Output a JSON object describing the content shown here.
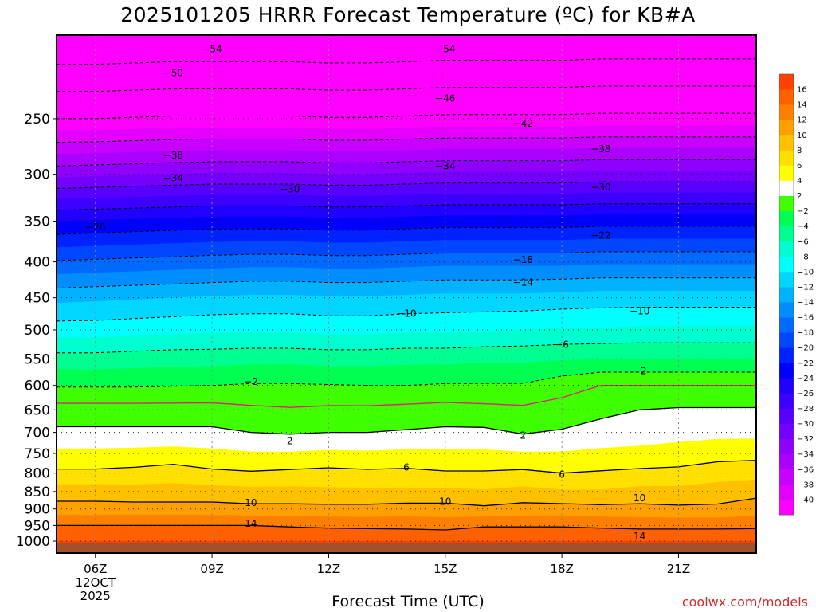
{
  "title": "2025101205 HRRR Forecast Temperature (ºC) for KB#A",
  "credit": "coolwx.com/models",
  "chart_data": {
    "type": "heatmap",
    "title": "2025101205 HRRR Forecast Temperature (ºC) for KB#A",
    "xlabel": "Forecast Time (UTC)",
    "ylabel": "",
    "x_ticks": [
      {
        "hour": 6,
        "label": "06Z",
        "sub1": "12OCT",
        "sub2": "2025"
      },
      {
        "hour": 9,
        "label": "09Z"
      },
      {
        "hour": 12,
        "label": "12Z"
      },
      {
        "hour": 15,
        "label": "15Z"
      },
      {
        "hour": 18,
        "label": "18Z"
      },
      {
        "hour": 21,
        "label": "21Z"
      }
    ],
    "xlim": [
      5,
      23
    ],
    "y_ticks": [
      250,
      300,
      350,
      400,
      450,
      500,
      550,
      600,
      650,
      700,
      750,
      800,
      850,
      900,
      950,
      1000
    ],
    "ylim": [
      1040,
      190
    ],
    "yscale": "log-pressure",
    "colorbar": {
      "levels": [
        -42,
        -40,
        -38,
        -36,
        -34,
        -32,
        -30,
        -28,
        -26,
        -24,
        -22,
        -20,
        -18,
        -16,
        -14,
        -12,
        -10,
        -8,
        -6,
        -4,
        -2,
        2,
        4,
        6,
        8,
        10,
        12,
        14,
        16,
        18
      ],
      "colors": [
        "#ff00ff",
        "#e400ff",
        "#c800ff",
        "#ac00ff",
        "#9000ff",
        "#7400ff",
        "#5800ff",
        "#3c00ff",
        "#2000ff",
        "#0000ff",
        "#0022ff",
        "#0046ff",
        "#006aff",
        "#008eff",
        "#00b2ff",
        "#00d6ff",
        "#00ffff",
        "#00ffd0",
        "#00ff90",
        "#00ff50",
        "#40ff00",
        "#ffffff",
        "#ffff00",
        "#ffe000",
        "#ffc000",
        "#ffa000",
        "#ff8000",
        "#ff6000",
        "#ff4000"
      ],
      "labels": [
        "16",
        "14",
        "12",
        "10",
        "8",
        "6",
        "4",
        "2",
        "−2",
        "−4",
        "−6",
        "−8",
        "−10",
        "−12",
        "−14",
        "−16",
        "−18",
        "−20",
        "−22",
        "−24",
        "−26",
        "−28",
        "−30",
        "−32",
        "−34",
        "−36",
        "−38",
        "−40"
      ]
    },
    "x_samples": [
      5,
      6,
      7,
      8,
      9,
      10,
      11,
      12,
      13,
      14,
      15,
      16,
      17,
      18,
      19,
      20,
      21,
      22,
      23
    ],
    "temperature_profiles": [
      {
        "p": 1000,
        "t": [
          16,
          16,
          16,
          16,
          16,
          16,
          16,
          16,
          16,
          16,
          16,
          16,
          16,
          16,
          16,
          16,
          16,
          16,
          16
        ]
      },
      {
        "p": 950,
        "t": [
          14,
          14,
          14,
          14,
          14,
          14,
          13.8,
          13.6,
          13.5,
          13.4,
          13.2,
          13.8,
          13.8,
          13.8,
          13.6,
          13.4,
          13.4,
          13.4,
          13.5
        ]
      },
      {
        "p": 900,
        "t": [
          10.8,
          10.8,
          10.8,
          10.8,
          10.8,
          10.6,
          10.6,
          10.6,
          10.6,
          10.8,
          10.8,
          10.4,
          10.8,
          10.8,
          10.6,
          10.6,
          10.4,
          10.4,
          11
        ]
      },
      {
        "p": 850,
        "t": [
          9,
          9,
          8.8,
          8.8,
          8.8,
          8.6,
          8.6,
          8.4,
          8.4,
          8.4,
          8.4,
          8.2,
          8.6,
          8.2,
          8.2,
          8.6,
          8.6,
          9,
          9.4
        ]
      },
      {
        "p": 800,
        "t": [
          6.4,
          6.4,
          6.6,
          7,
          6.4,
          6.2,
          6.4,
          6.6,
          6.4,
          6.5,
          6.2,
          6.2,
          6.4,
          6,
          6.2,
          6.4,
          6.5,
          7,
          7.2
        ]
      },
      {
        "p": 700,
        "t": [
          2.4,
          2.4,
          2.4,
          2.4,
          2.4,
          2,
          1.8,
          2,
          2,
          2.2,
          2.4,
          2.4,
          1.8,
          2.2,
          2.6,
          2.8,
          3.2,
          3.4,
          3.4
        ]
      },
      {
        "p": 650,
        "t": [
          0.8,
          0.8,
          0.8,
          0.8,
          0.8,
          0.4,
          0.2,
          0.4,
          0.4,
          0.6,
          0.8,
          0.6,
          0.4,
          0.8,
          1.6,
          2,
          2.2,
          2.2,
          2.2
        ]
      },
      {
        "p": 600,
        "t": [
          -2.2,
          -2.2,
          -2.2,
          -2.1,
          -2,
          -1.8,
          -1.8,
          -1.9,
          -2,
          -2,
          -1.8,
          -1.8,
          -1.8,
          -0.8,
          0,
          0,
          0,
          0,
          0
        ]
      },
      {
        "p": 550,
        "t": [
          -5.2,
          -5.2,
          -5,
          -4.8,
          -4.8,
          -4.6,
          -4.6,
          -4.8,
          -4.8,
          -4.6,
          -4.6,
          -4.4,
          -4.4,
          -4.2,
          -4,
          -4,
          -4,
          -4,
          -4
        ]
      },
      {
        "p": 500,
        "t": [
          -9,
          -9,
          -8.8,
          -8.6,
          -8.4,
          -8.4,
          -8.4,
          -8.6,
          -8.6,
          -8.4,
          -8.4,
          -8.2,
          -8,
          -7.8,
          -7.8,
          -7.6,
          -7.6,
          -7.6,
          -7.6
        ]
      },
      {
        "p": 450,
        "t": [
          -12.6,
          -12.4,
          -12.2,
          -12,
          -11.8,
          -11.6,
          -11.6,
          -11.8,
          -11.8,
          -11.6,
          -11.4,
          -11.4,
          -11.4,
          -11.2,
          -11,
          -11,
          -11,
          -11,
          -11
        ]
      },
      {
        "p": 400,
        "t": [
          -17.8,
          -17.6,
          -17.4,
          -17.2,
          -17,
          -16.8,
          -16.8,
          -17,
          -17,
          -16.8,
          -16.6,
          -16.6,
          -16.6,
          -16.6,
          -16.4,
          -16.4,
          -16.4,
          -16.4,
          -16.4
        ]
      },
      {
        "p": 350,
        "t": [
          -24,
          -23.8,
          -23.6,
          -23.4,
          -23.2,
          -23.2,
          -23.2,
          -23.4,
          -23.4,
          -23.2,
          -23,
          -23,
          -23,
          -23,
          -22.8,
          -22.8,
          -22.8,
          -22.8,
          -22.8
        ]
      },
      {
        "p": 300,
        "t": [
          -32.6,
          -32.4,
          -32.2,
          -32,
          -31.8,
          -31.8,
          -31.8,
          -32,
          -32,
          -31.8,
          -31.6,
          -31.6,
          -31.6,
          -31.6,
          -31.4,
          -31.4,
          -31.4,
          -31.4,
          -31.4
        ]
      },
      {
        "p": 250,
        "t": [
          -42,
          -42,
          -41.8,
          -41.6,
          -41.6,
          -41.6,
          -41.6,
          -41.8,
          -41.8,
          -41.6,
          -41.4,
          -41.4,
          -41.4,
          -41.4,
          -41.2,
          -41.2,
          -41.2,
          -41.2,
          -41.2
        ]
      },
      {
        "p": 200,
        "t": [
          -52,
          -52,
          -51.8,
          -51.6,
          -51.6,
          -51.6,
          -51.6,
          -51.8,
          -51.8,
          -51.6,
          -51.4,
          -51.4,
          -51.4,
          -51.4,
          -51.2,
          -51.2,
          -51.2,
          -51.2,
          -51.2
        ]
      }
    ],
    "contour_labels": [
      {
        "text": "−54",
        "hour": 9,
        "p": 199
      },
      {
        "text": "−54",
        "hour": 15,
        "p": 199
      },
      {
        "text": "−50",
        "hour": 8,
        "p": 215
      },
      {
        "text": "−46",
        "hour": 15,
        "p": 234
      },
      {
        "text": "−42",
        "hour": 17,
        "p": 254
      },
      {
        "text": "−38",
        "hour": 8,
        "p": 282
      },
      {
        "text": "−38",
        "hour": 19,
        "p": 276
      },
      {
        "text": "−34",
        "hour": 8,
        "p": 304
      },
      {
        "text": "−34",
        "hour": 15,
        "p": 292
      },
      {
        "text": "−30",
        "hour": 11,
        "p": 315
      },
      {
        "text": "−30",
        "hour": 19,
        "p": 313
      },
      {
        "text": "−26",
        "hour": 6,
        "p": 357
      },
      {
        "text": "−22",
        "hour": 19,
        "p": 367
      },
      {
        "text": "−18",
        "hour": 17,
        "p": 397
      },
      {
        "text": "−14",
        "hour": 17,
        "p": 428
      },
      {
        "text": "−10",
        "hour": 14,
        "p": 474
      },
      {
        "text": "−10",
        "hour": 20,
        "p": 470
      },
      {
        "text": "−6",
        "hour": 18,
        "p": 525
      },
      {
        "text": "−2",
        "hour": 10,
        "p": 593
      },
      {
        "text": "−2",
        "hour": 20,
        "p": 572
      },
      {
        "text": "2",
        "hour": 11,
        "p": 720
      },
      {
        "text": "2",
        "hour": 17,
        "p": 707
      },
      {
        "text": "6",
        "hour": 14,
        "p": 785
      },
      {
        "text": "6",
        "hour": 18,
        "p": 804
      },
      {
        "text": "10",
        "hour": 10,
        "p": 882
      },
      {
        "text": "10",
        "hour": 15,
        "p": 878
      },
      {
        "text": "10",
        "hour": 20,
        "p": 868
      },
      {
        "text": "14",
        "hour": 10,
        "p": 944
      },
      {
        "text": "14",
        "hour": 20,
        "p": 985
      }
    ]
  }
}
